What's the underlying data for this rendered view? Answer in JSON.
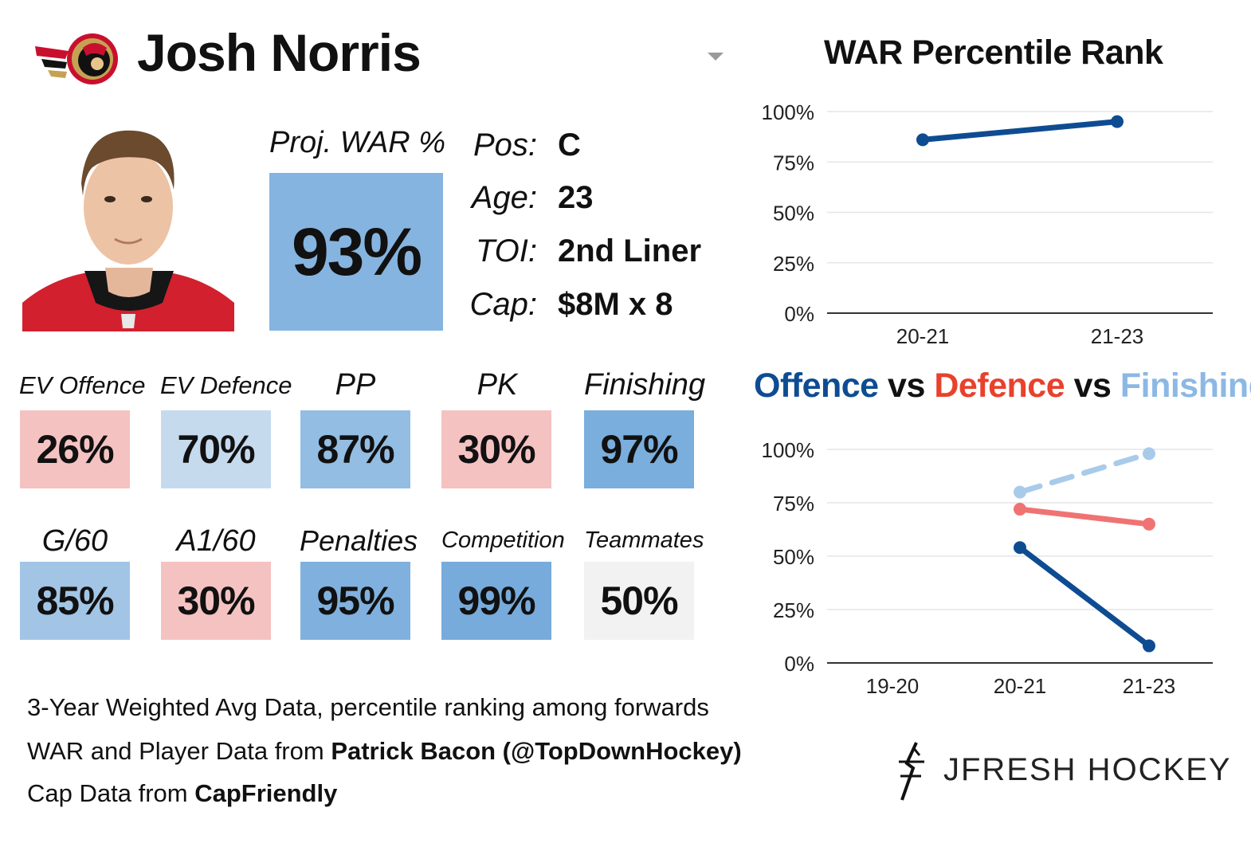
{
  "player": {
    "name": "Josh Norris",
    "team_logo_icon": "senators-logo-icon",
    "photo_icon": "player-headshot-icon"
  },
  "projection": {
    "label": "Proj. WAR %",
    "value": "93%",
    "color": "#86b4e0"
  },
  "info": [
    {
      "key": "Pos:",
      "value": "C"
    },
    {
      "key": "Age:",
      "value": "23"
    },
    {
      "key": "TOI:",
      "value": "2nd Liner"
    },
    {
      "key": "Cap:",
      "value": "$8M x 8"
    }
  ],
  "stats": [
    {
      "label": "EV Offence",
      "value": "26%",
      "color": "#f5c2c2"
    },
    {
      "label": "EV Defence",
      "value": "70%",
      "color": "#c6daee"
    },
    {
      "label": "PP",
      "value": "87%",
      "color": "#93bde3"
    },
    {
      "label": "PK",
      "value": "30%",
      "color": "#f5c2c2"
    },
    {
      "label": "Finishing",
      "value": "97%",
      "color": "#7aaedd"
    },
    {
      "label": "G/60",
      "value": "85%",
      "color": "#a2c5e6"
    },
    {
      "label": "A1/60",
      "value": "30%",
      "color": "#f5c2c2"
    },
    {
      "label": "Penalties",
      "value": "95%",
      "color": "#80b1de"
    },
    {
      "label": "Competition",
      "value": "99%",
      "color": "#77abdc"
    },
    {
      "label": "Teammates",
      "value": "50%",
      "color": "#f2f2f2"
    }
  ],
  "footer": {
    "line1": "3-Year Weighted Avg Data, percentile ranking among forwards",
    "line2_prefix": "WAR and Player Data from ",
    "line2_bold": "Patrick Bacon (@TopDownHockey)",
    "line3_prefix": "Cap Data from ",
    "line3_bold": "CapFriendly"
  },
  "brand": {
    "text": "JFRESH HOCKEY",
    "icon": "jfresh-logo-icon"
  },
  "chart_data": [
    {
      "type": "line",
      "title": "WAR Percentile Rank",
      "categories": [
        "20-21",
        "21-23"
      ],
      "series": [
        {
          "name": "WAR",
          "values": [
            86,
            95
          ],
          "color": "#0e4c92",
          "dashed": false
        }
      ],
      "ylim": [
        0,
        100
      ],
      "yticks": [
        "0%",
        "25%",
        "50%",
        "75%",
        "100%"
      ],
      "ytick_values": [
        0,
        25,
        50,
        75,
        100
      ],
      "grid": true
    },
    {
      "type": "line",
      "title_parts": [
        {
          "text": "Offence",
          "color": "#0e4c92"
        },
        {
          "text": " vs ",
          "color": "#111111"
        },
        {
          "text": "Defence",
          "color": "#e8412c"
        },
        {
          "text": " vs ",
          "color": "#111111"
        },
        {
          "text": "Finishing",
          "color": "#8cb8e4"
        }
      ],
      "categories": [
        "19-20",
        "20-21",
        "21-23"
      ],
      "series": [
        {
          "name": "Offence",
          "values": [
            null,
            54,
            8
          ],
          "color": "#0e4c92",
          "dashed": false
        },
        {
          "name": "Defence",
          "values": [
            null,
            72,
            65
          ],
          "color": "#f07373",
          "dashed": false
        },
        {
          "name": "Finishing",
          "values": [
            null,
            80,
            98
          ],
          "color": "#a9cbea",
          "dashed": true
        }
      ],
      "ylim": [
        0,
        100
      ],
      "yticks": [
        "0%",
        "25%",
        "50%",
        "75%",
        "100%"
      ],
      "ytick_values": [
        0,
        25,
        50,
        75,
        100
      ],
      "grid": true
    }
  ]
}
